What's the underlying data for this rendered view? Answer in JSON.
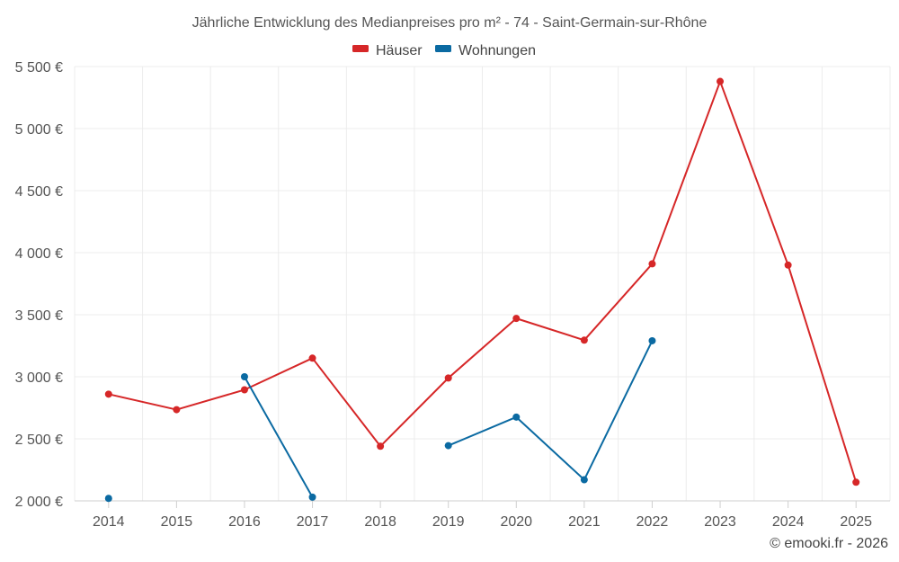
{
  "chart_data": {
    "type": "line",
    "title": "Jährliche Entwicklung des Medianpreises pro m² - 74 - Saint-Germain-sur-Rhône",
    "categories": [
      "2014",
      "2015",
      "2016",
      "2017",
      "2018",
      "2019",
      "2020",
      "2021",
      "2022",
      "2023",
      "2024",
      "2025"
    ],
    "series": [
      {
        "name": "Häuser",
        "color": "#d62728",
        "values": [
          2860,
          2735,
          2895,
          3150,
          2440,
          2990,
          3470,
          3295,
          3910,
          5380,
          3900,
          2150
        ]
      },
      {
        "name": "Wohnungen",
        "color": "#0b6aa2",
        "values": [
          2020,
          null,
          3000,
          2030,
          null,
          2445,
          2675,
          2170,
          3290,
          null,
          null,
          null
        ]
      }
    ],
    "ylim": [
      2000,
      5500
    ],
    "yticks": [
      2000,
      2500,
      3000,
      3500,
      4000,
      4500,
      5000,
      5500
    ],
    "ytick_labels": [
      "2 000 €",
      "2 500 €",
      "3 000 €",
      "3 500 €",
      "4 000 €",
      "4 500 €",
      "5 000 €",
      "5 500 €"
    ],
    "xlabel": "",
    "ylabel": "",
    "legend_position": "top-center",
    "grid": true
  },
  "credit": "© emooki.fr - 2026"
}
